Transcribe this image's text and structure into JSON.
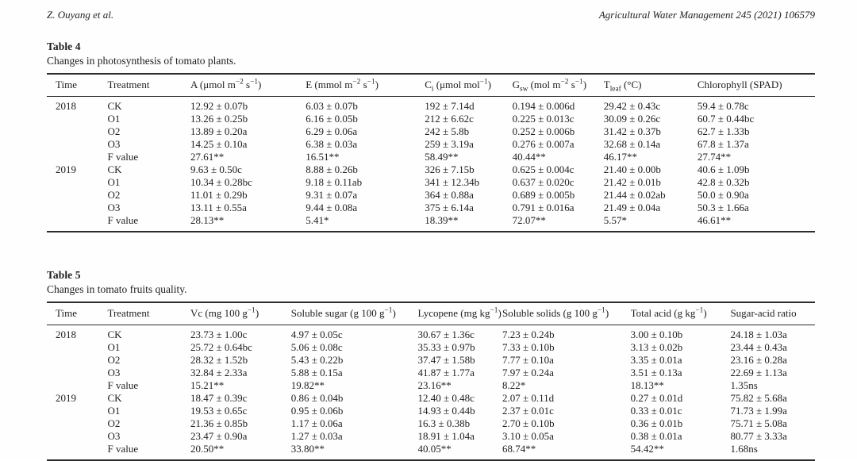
{
  "page_header": {
    "authors": "Z. Ouyang et al.",
    "journal": "Agricultural Water Management 245 (2021) 106579"
  },
  "tables": [
    {
      "label": "Table 4",
      "caption": "Changes in photosynthesis of tomato plants.",
      "columns": [
        "Time",
        "Treatment",
        "A (μmol m^−2^ s^−1^)",
        "E (mmol m^−2^ s^−1^)",
        "C~i~ (μmol mol^−1^)",
        "G~sw~ (mol m^−2^ s^−1^)",
        "T~leaf~ (°C)",
        "Chlorophyll (SPAD)"
      ],
      "rows": [
        [
          "2018",
          "CK",
          "12.92 ± 0.07b",
          "6.03 ± 0.07b",
          "192 ± 7.14d",
          "0.194 ± 0.006d",
          "29.42 ± 0.43c",
          "59.4 ± 0.78c"
        ],
        [
          "",
          "O1",
          "13.26 ± 0.25b",
          "6.16 ± 0.05b",
          "212 ± 6.62c",
          "0.225 ± 0.013c",
          "30.09 ± 0.26c",
          "60.7 ± 0.44bc"
        ],
        [
          "",
          "O2",
          "13.89 ± 0.20a",
          "6.29 ± 0.06a",
          "242 ± 5.8b",
          "0.252 ± 0.006b",
          "31.42 ± 0.37b",
          "62.7 ± 1.33b"
        ],
        [
          "",
          "O3",
          "14.25 ± 0.10a",
          "6.38 ± 0.03a",
          "259 ± 3.19a",
          "0.276 ± 0.007a",
          "32.68 ± 0.14a",
          "67.8 ± 1.37a"
        ],
        [
          "",
          "F value",
          "27.61**",
          "16.51**",
          "58.49**",
          "40.44**",
          "46.17**",
          "27.74**"
        ],
        [
          "2019",
          "CK",
          "9.63 ± 0.50c",
          "8.88 ± 0.26b",
          "326 ± 7.15b",
          "0.625 ± 0.004c",
          "21.40 ± 0.00b",
          "40.6 ± 1.09b"
        ],
        [
          "",
          "O1",
          "10.34 ± 0.28bc",
          "9.18 ± 0.11ab",
          "341 ± 12.34b",
          "0.637 ± 0.020c",
          "21.42 ± 0.01b",
          "42.8 ± 0.32b"
        ],
        [
          "",
          "O2",
          "11.01 ± 0.29b",
          "9.31 ± 0.07a",
          "364 ± 0.88a",
          "0.689 ± 0.005b",
          "21.44 ± 0.02ab",
          "50.0 ± 0.90a"
        ],
        [
          "",
          "O3",
          "13.11 ± 0.55a",
          "9.44 ± 0.08a",
          "375 ± 6.14a",
          "0.791 ± 0.016a",
          "21.49 ± 0.04a",
          "50.3 ± 1.66a"
        ],
        [
          "",
          "F value",
          "28.13**",
          "5.41*",
          "18.39**",
          "72.07**",
          "5.57*",
          "46.61**"
        ]
      ]
    },
    {
      "label": "Table 5",
      "caption": "Changes in tomato fruits quality.",
      "columns": [
        "Time",
        "Treatment",
        "Vc (mg 100 g^−1^)",
        "Soluble sugar (g 100 g^−1^)",
        "Lycopene (mg kg^−1^)",
        "Soluble solids (g 100 g^−1^)",
        "Total acid (g kg^−1^)",
        "Sugar-acid ratio"
      ],
      "rows": [
        [
          "2018",
          "CK",
          "23.73 ± 1.00c",
          "4.97 ± 0.05c",
          "30.67 ± 1.36c",
          "7.23 ± 0.24b",
          "3.00 ± 0.10b",
          "24.18 ± 1.03a"
        ],
        [
          "",
          "O1",
          "25.72 ± 0.64bc",
          "5.06 ± 0.08c",
          "35.33 ± 0.97b",
          "7.33 ± 0.10b",
          "3.13 ± 0.02b",
          "23.44 ± 0.43a"
        ],
        [
          "",
          "O2",
          "28.32 ± 1.52b",
          "5.43 ± 0.22b",
          "37.47 ± 1.58b",
          "7.77 ± 0.10a",
          "3.35 ± 0.01a",
          "23.16 ± 0.28a"
        ],
        [
          "",
          "O3",
          "32.84 ± 2.33a",
          "5.88 ± 0.15a",
          "41.87 ± 1.77a",
          "7.97 ± 0.24a",
          "3.51 ± 0.13a",
          "22.69 ± 1.13a"
        ],
        [
          "",
          "F value",
          "15.21**",
          "19.82**",
          "23.16**",
          "8.22*",
          "18.13**",
          "1.35ns"
        ],
        [
          "2019",
          "CK",
          "18.47 ± 0.39c",
          "0.86 ± 0.04b",
          "12.40 ± 0.48c",
          "2.07 ± 0.11d",
          "0.27 ± 0.01d",
          "75.82 ± 5.68a"
        ],
        [
          "",
          "O1",
          "19.53 ± 0.65c",
          "0.95 ± 0.06b",
          "14.93 ± 0.44b",
          "2.37 ± 0.01c",
          "0.33 ± 0.01c",
          "71.73 ± 1.99a"
        ],
        [
          "",
          "O2",
          "21.36 ± 0.85b",
          "1.17 ± 0.06a",
          "16.3 ± 0.38b",
          "2.70 ± 0.10b",
          "0.36 ± 0.01b",
          "75.71 ± 5.08a"
        ],
        [
          "",
          "O3",
          "23.47 ± 0.90a",
          "1.27 ± 0.03a",
          "18.91 ± 1.04a",
          "3.10 ± 0.05a",
          "0.38 ± 0.01a",
          "80.77 ± 3.33a"
        ],
        [
          "",
          "F value",
          "20.50**",
          "33.80**",
          "40.05**",
          "68.74**",
          "54.42**",
          "1.68ns"
        ]
      ]
    }
  ]
}
